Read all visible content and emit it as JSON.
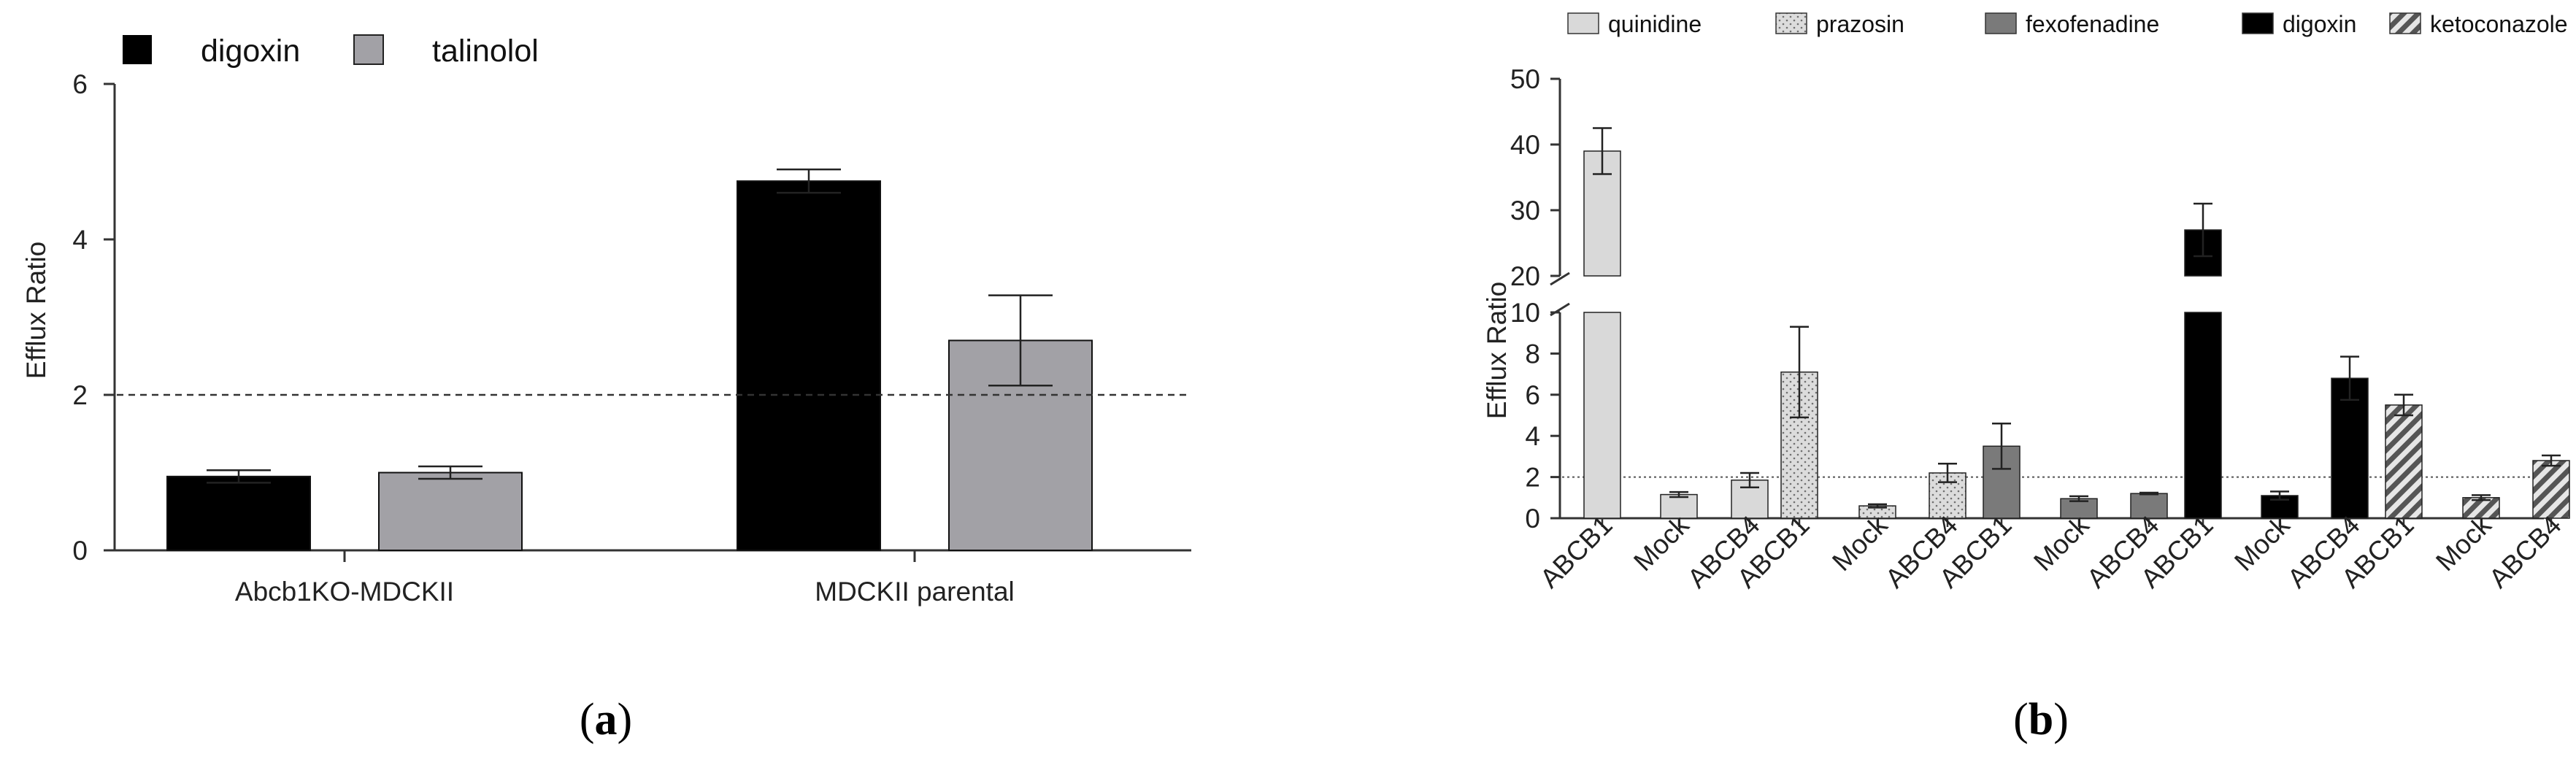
{
  "chart_data": [
    {
      "panel": "a",
      "type": "bar",
      "caption_letter": "a",
      "title": "",
      "xlabel": "",
      "ylabel": "Efflux Ratio",
      "ylim": [
        0,
        6
      ],
      "yticks": [
        0,
        2,
        4,
        6
      ],
      "categories": [
        "Abcb1KO-MDCKII",
        "MDCKII parental"
      ],
      "series": [
        {
          "name": "digoxin",
          "color": "#000000",
          "values": [
            0.95,
            4.75
          ],
          "errors": [
            0.08,
            0.15
          ]
        },
        {
          "name": "talinolol",
          "color": "#a2a1a6",
          "values": [
            1.0,
            2.7
          ],
          "errors": [
            0.08,
            0.58
          ]
        }
      ],
      "reference_line": 2,
      "legend_position": "top-left"
    },
    {
      "panel": "b",
      "type": "bar",
      "caption_letter": "b",
      "title": "",
      "xlabel": "",
      "ylabel": "Efflux Ratio",
      "axis_break": [
        10,
        20
      ],
      "ylim": [
        0,
        50
      ],
      "yticks_lower": [
        0,
        2,
        4,
        6,
        8,
        10
      ],
      "yticks_upper": [
        20,
        30,
        40,
        50
      ],
      "reference_line": 2,
      "legend_position": "top",
      "groups": [
        {
          "drug": "quinidine",
          "pattern": "solid",
          "color": "#d9d9d9",
          "labels": [
            "ABCB1",
            "Mock",
            "ABCB4"
          ],
          "values": [
            39,
            1.15,
            1.85
          ],
          "errors": [
            3.5,
            0.12,
            0.35
          ]
        },
        {
          "drug": "prazosin",
          "pattern": "dots",
          "color": "#dcdcdc",
          "labels": [
            "ABCB1",
            "Mock",
            "ABCB4"
          ],
          "values": [
            7.1,
            0.6,
            2.2
          ],
          "errors": [
            2.2,
            0.08,
            0.45
          ]
        },
        {
          "drug": "fexofenadine",
          "pattern": "solid",
          "color": "#7a7a7a",
          "labels": [
            "ABCB1",
            "Mock",
            "ABCB4"
          ],
          "values": [
            3.5,
            0.95,
            1.2
          ],
          "errors": [
            1.1,
            0.12,
            0.04
          ]
        },
        {
          "drug": "digoxin",
          "pattern": "solid",
          "color": "#000000",
          "labels": [
            "ABCB1",
            "Mock",
            "ABCB4"
          ],
          "values": [
            27,
            1.1,
            6.8
          ],
          "errors": [
            4,
            0.2,
            1.05
          ]
        },
        {
          "drug": "ketoconazole",
          "pattern": "stripes",
          "color": "#888888",
          "labels": [
            "ABCB1",
            "Mock",
            "ABCB4"
          ],
          "values": [
            5.5,
            1.0,
            2.8
          ],
          "errors": [
            0.5,
            0.12,
            0.25
          ]
        }
      ]
    }
  ]
}
